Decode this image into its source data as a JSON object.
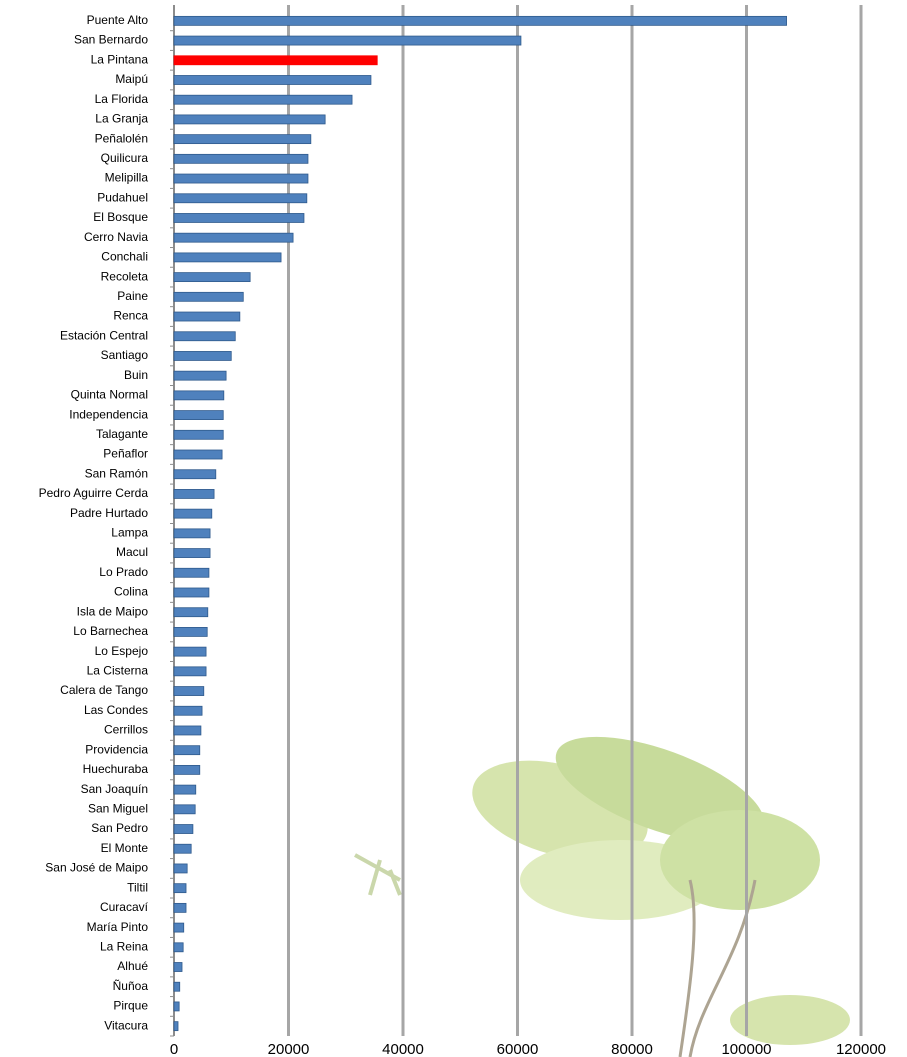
{
  "chart_data": {
    "type": "bar",
    "orientation": "horizontal",
    "categories": [
      "Puente Alto",
      "San Bernardo",
      "La Pintana",
      "Maipú",
      "La Florida",
      "La Granja",
      "Peñalolén",
      "Quilicura",
      "Melipilla",
      "Pudahuel",
      "El Bosque",
      "Cerro Navia",
      "Conchali",
      "Recoleta",
      "Paine",
      "Renca",
      "Estación Central",
      "Santiago",
      "Buin",
      "Quinta Normal",
      "Independencia",
      "Talagante",
      "Peñaflor",
      "San Ramón",
      "Pedro Aguirre Cerda",
      "Padre Hurtado",
      "Lampa",
      "Macul",
      "Lo Prado",
      "Colina",
      "Isla de Maipo",
      "Lo Barnechea",
      "Lo Espejo",
      "La Cisterna",
      "Calera de Tango",
      "Las Condes",
      "Cerrillos",
      "Providencia",
      "Huechuraba",
      "San Joaquín",
      "San Miguel",
      "San Pedro",
      "El Monte",
      "San José de Maipo",
      "Tiltil",
      "Curacaví",
      "María Pinto",
      "La Reina",
      "Alhué",
      "Ñuñoa",
      "Pirque",
      "Vitacura"
    ],
    "values": [
      107000,
      60600,
      35500,
      34400,
      31100,
      26400,
      23900,
      23400,
      23400,
      23200,
      22700,
      20800,
      18700,
      13300,
      12100,
      11500,
      10700,
      10000,
      9100,
      8700,
      8600,
      8600,
      8400,
      7300,
      7000,
      6600,
      6300,
      6300,
      6100,
      6100,
      5900,
      5800,
      5600,
      5600,
      5200,
      4900,
      4700,
      4500,
      4500,
      3800,
      3700,
      3300,
      3000,
      2300,
      2100,
      2100,
      1700,
      1600,
      1400,
      1000,
      900,
      700
    ],
    "color": "#4f81bd",
    "colors": [
      "#4f81bd",
      "#4f81bd",
      "#ff0000",
      "#4f81bd",
      "#4f81bd",
      "#4f81bd",
      "#4f81bd",
      "#4f81bd",
      "#4f81bd",
      "#4f81bd",
      "#4f81bd",
      "#4f81bd",
      "#4f81bd",
      "#4f81bd",
      "#4f81bd",
      "#4f81bd",
      "#4f81bd",
      "#4f81bd",
      "#4f81bd",
      "#4f81bd",
      "#4f81bd",
      "#4f81bd",
      "#4f81bd",
      "#4f81bd",
      "#4f81bd",
      "#4f81bd",
      "#4f81bd",
      "#4f81bd",
      "#4f81bd",
      "#4f81bd",
      "#4f81bd",
      "#4f81bd",
      "#4f81bd",
      "#4f81bd",
      "#4f81bd",
      "#4f81bd",
      "#4f81bd",
      "#4f81bd",
      "#4f81bd",
      "#4f81bd",
      "#4f81bd",
      "#4f81bd",
      "#4f81bd",
      "#4f81bd",
      "#4f81bd",
      "#4f81bd",
      "#4f81bd",
      "#4f81bd",
      "#4f81bd",
      "#4f81bd",
      "#4f81bd",
      "#4f81bd"
    ],
    "xlim": [
      0,
      120000
    ],
    "xticks": [
      0,
      20000,
      40000,
      60000,
      80000,
      100000,
      120000
    ],
    "grid": true
  }
}
